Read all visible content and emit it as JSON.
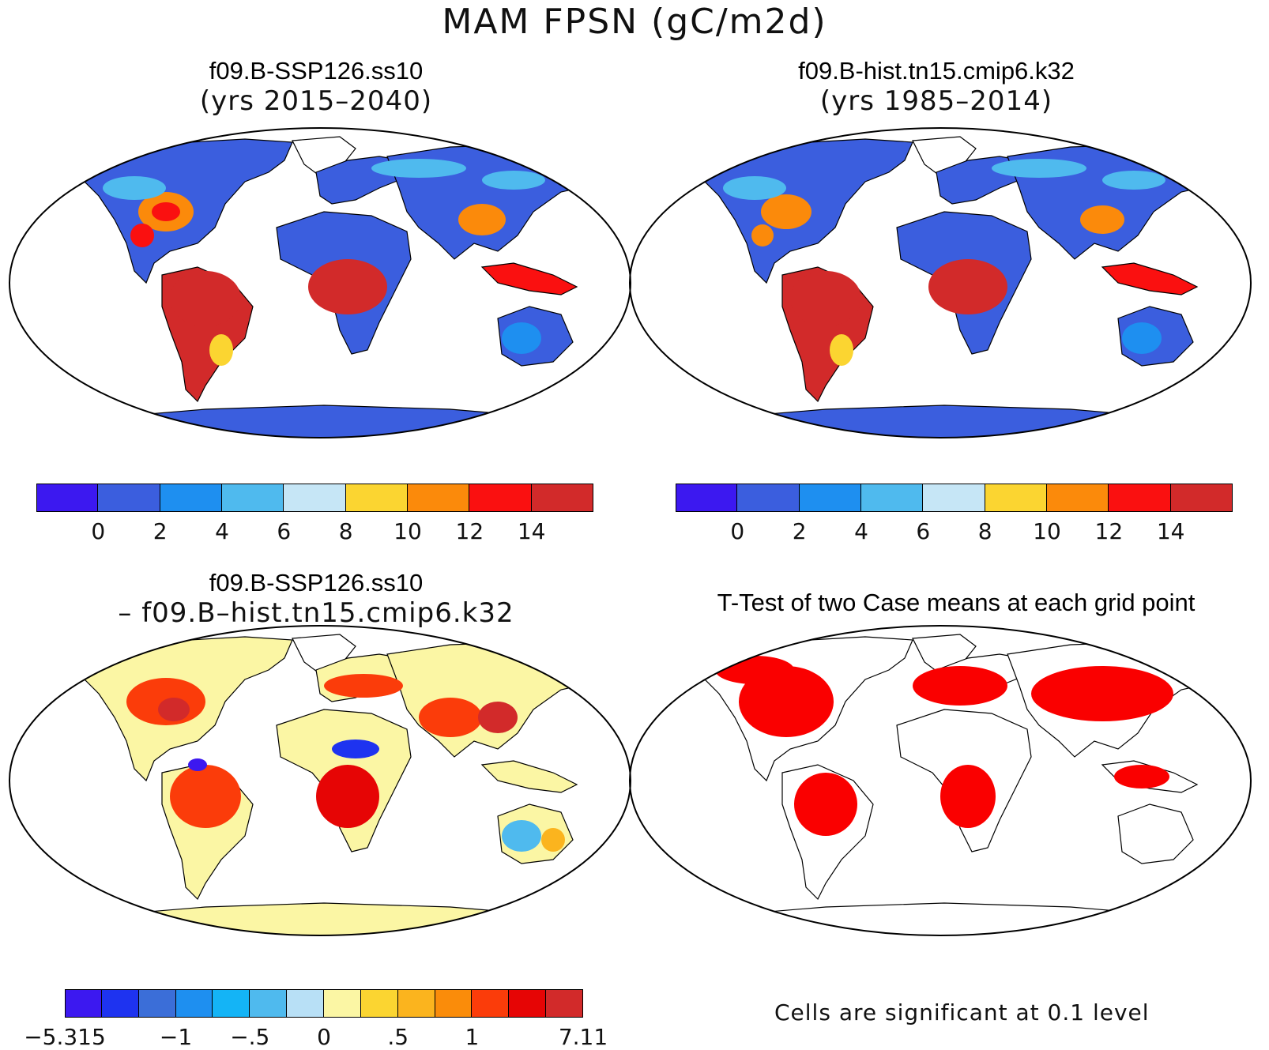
{
  "figure": {
    "title": "MAM FPSN (gC/m2d)"
  },
  "panels": {
    "top_left": {
      "case": "f09.B-SSP126.ss10",
      "years": "(yrs 2015–2040)"
    },
    "top_right": {
      "case": "f09.B-hist.tn15.cmip6.k32",
      "years": "(yrs 1985–2014)"
    },
    "bottom_left": {
      "case": "f09.B-SSP126.ss10",
      "minus": "– f09.B–hist.tn15.cmip6.k32"
    },
    "bottom_right": {
      "title": "T-Test of two Case means at each grid point",
      "note": "Cells are significant at 0.1 level"
    }
  },
  "colorbars": {
    "absolute": {
      "colors": [
        "#3c18f0",
        "#3b5ede",
        "#1e8ff0",
        "#4fbaee",
        "#c6e6f6",
        "#fbd531",
        "#fb8a0b",
        "#fa1010",
        "#d22a2a"
      ],
      "ticks": [
        "0",
        "2",
        "4",
        "6",
        "8",
        "10",
        "12",
        "14"
      ]
    },
    "difference": {
      "colors": [
        "#3c18f0",
        "#1e33f0",
        "#3b6ed8",
        "#1e8ff0",
        "#14b4f6",
        "#4fbaee",
        "#b8e0f6",
        "#fbf6a4",
        "#fbd531",
        "#fbb41e",
        "#fa8c0a",
        "#fb3c0a",
        "#e60505",
        "#d22a2a"
      ],
      "ticks": [
        "−5.315",
        "−1",
        "−.5",
        "0",
        ".5",
        "1",
        "7.11"
      ]
    }
  },
  "colors": {
    "land_base_abs": "#3b5ede",
    "land_base_diff": "#fbf6a4",
    "significant": "#fa0000"
  }
}
